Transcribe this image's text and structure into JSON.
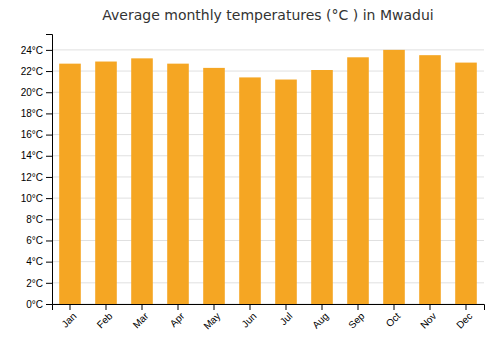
{
  "chart_data": {
    "type": "bar",
    "title": "Average monthly temperatures (°C ) in Mwadui",
    "categories": [
      "Jan",
      "Feb",
      "Mar",
      "Apr",
      "May",
      "Jun",
      "Jul",
      "Aug",
      "Sep",
      "Oct",
      "Nov",
      "Dec"
    ],
    "values": [
      22.7,
      22.9,
      23.2,
      22.7,
      22.3,
      21.4,
      21.2,
      22.1,
      23.3,
      24.0,
      23.5,
      22.8
    ],
    "color": "#F5A623",
    "ylim": [
      0,
      25.5
    ],
    "yticks": [
      {
        "value": 0,
        "label": "0°C"
      },
      {
        "value": 2,
        "label": "2°C"
      },
      {
        "value": 4,
        "label": "4°C"
      },
      {
        "value": 6,
        "label": "6°C"
      },
      {
        "value": 8,
        "label": "8°C"
      },
      {
        "value": 10,
        "label": "10°C"
      },
      {
        "value": 12,
        "label": "12°C"
      },
      {
        "value": 14,
        "label": "14°C"
      },
      {
        "value": 16,
        "label": "16°C"
      },
      {
        "value": 18,
        "label": "18°C"
      },
      {
        "value": 20,
        "label": "20°C"
      },
      {
        "value": 22,
        "label": "22°C"
      },
      {
        "value": 24,
        "label": "24°C"
      }
    ],
    "grid": true
  }
}
